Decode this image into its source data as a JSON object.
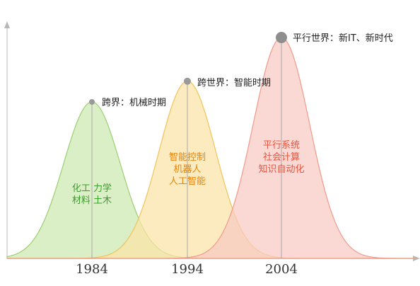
{
  "diagram": {
    "eras": [
      {
        "year": "1984",
        "peak_label": "跨界：机械时期",
        "content_lines": [
          "化工 力学",
          "材料 土木"
        ],
        "fill": "#cde9b0",
        "stroke": "#9ccf70",
        "text_color": "#3a9e2a",
        "relative_height": 0.68
      },
      {
        "year": "1994",
        "peak_label": "跨世界：智能时期",
        "content_lines": [
          "智能控制",
          "机器人",
          "人工智能"
        ],
        "fill": "#f9e3a6",
        "stroke": "#f0c45a",
        "text_color": "#e8850f",
        "relative_height": 0.77
      },
      {
        "year": "2004",
        "peak_label": "平行世界：新IT、新时代",
        "content_lines": [
          "平行系统",
          "社会计算",
          "知识自动化"
        ],
        "fill": "#f8c9c2",
        "stroke": "#f29a8a",
        "text_color": "#e8533f",
        "relative_height": 0.96
      }
    ]
  }
}
